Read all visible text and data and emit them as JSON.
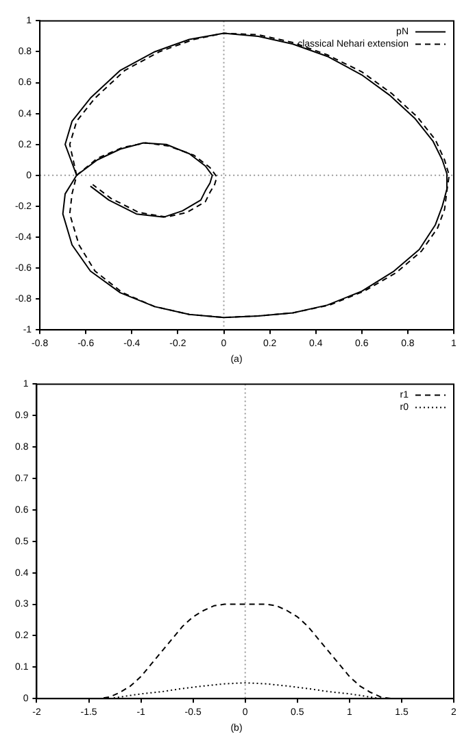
{
  "chart_data": [
    {
      "type": "line",
      "xlim": [
        -0.8,
        1
      ],
      "ylim": [
        -1,
        1
      ],
      "xticks": [
        -0.8,
        -0.6,
        -0.4,
        -0.2,
        0,
        0.2,
        0.4,
        0.6,
        0.8,
        1
      ],
      "yticks": [
        -1,
        -0.8,
        -0.6,
        -0.4,
        -0.2,
        0,
        0.2,
        0.4,
        0.6,
        0.8,
        1
      ],
      "grid": false,
      "legend": "top right",
      "marker": "none",
      "annotations": [
        "(a)"
      ],
      "ref_lines": [
        {
          "axis": "x",
          "value": 0,
          "line_style": "dotted",
          "color": "#999999"
        },
        {
          "axis": "y",
          "value": 0,
          "line_style": "dotted",
          "color": "#999999"
        }
      ],
      "series": [
        {
          "name": "pN",
          "color": "#000000",
          "line_style": "solid",
          "x": [
            -0.64,
            -0.69,
            -0.66,
            -0.58,
            -0.45,
            -0.3,
            -0.15,
            0,
            0.15,
            0.3,
            0.45,
            0.6,
            0.72,
            0.83,
            0.91,
            0.95,
            0.97,
            0.97,
            0.95,
            0.92,
            0.85,
            0.74,
            0.6,
            0.45,
            0.3,
            0.15,
            0,
            -0.15,
            -0.3,
            -0.45,
            -0.58,
            -0.66,
            -0.7,
            -0.69,
            -0.64,
            -0.55,
            -0.45,
            -0.35,
            -0.25,
            -0.15,
            -0.08,
            -0.06,
            -0.05,
            -0.06,
            -0.08,
            -0.1,
            -0.18,
            -0.26,
            -0.38,
            -0.5,
            -0.58
          ],
          "values": [
            0,
            0.2,
            0.35,
            0.5,
            0.68,
            0.8,
            0.88,
            0.92,
            0.9,
            0.85,
            0.77,
            0.65,
            0.52,
            0.37,
            0.22,
            0.1,
            0.01,
            -0.09,
            -0.2,
            -0.32,
            -0.48,
            -0.62,
            -0.75,
            -0.84,
            -0.89,
            -0.91,
            -0.92,
            -0.9,
            -0.85,
            -0.76,
            -0.62,
            -0.45,
            -0.25,
            -0.12,
            0,
            0.1,
            0.17,
            0.21,
            0.2,
            0.14,
            0.06,
            0.02,
            0,
            -0.05,
            -0.1,
            -0.16,
            -0.23,
            -0.27,
            -0.25,
            -0.16,
            -0.07
          ]
        },
        {
          "name": "classical Nehari extension",
          "color": "#000000",
          "line_style": "dashed",
          "x": [
            -0.64,
            -0.67,
            -0.64,
            -0.56,
            -0.43,
            -0.28,
            -0.13,
            0,
            0.15,
            0.3,
            0.45,
            0.6,
            0.73,
            0.84,
            0.92,
            0.96,
            0.98,
            0.97,
            0.96,
            0.93,
            0.86,
            0.75,
            0.61,
            0.46,
            0.3,
            0.15,
            0,
            -0.15,
            -0.3,
            -0.44,
            -0.56,
            -0.63,
            -0.67,
            -0.66,
            -0.64,
            -0.55,
            -0.44,
            -0.34,
            -0.24,
            -0.13,
            -0.06,
            -0.04,
            -0.03,
            -0.04,
            -0.06,
            -0.08,
            -0.16,
            -0.25,
            -0.37,
            -0.49,
            -0.57
          ],
          "values": [
            0,
            0.2,
            0.35,
            0.5,
            0.68,
            0.8,
            0.88,
            0.92,
            0.91,
            0.86,
            0.78,
            0.67,
            0.53,
            0.38,
            0.23,
            0.1,
            0,
            -0.1,
            -0.22,
            -0.34,
            -0.49,
            -0.63,
            -0.75,
            -0.84,
            -0.89,
            -0.91,
            -0.92,
            -0.9,
            -0.85,
            -0.76,
            -0.62,
            -0.45,
            -0.25,
            -0.12,
            0,
            0.11,
            0.18,
            0.21,
            0.19,
            0.13,
            0.05,
            0.01,
            -0.01,
            -0.06,
            -0.11,
            -0.17,
            -0.24,
            -0.27,
            -0.24,
            -0.15,
            -0.06
          ]
        }
      ]
    },
    {
      "type": "line",
      "xlim": [
        -2,
        2
      ],
      "ylim": [
        0,
        1
      ],
      "xticks": [
        -2,
        -1.5,
        -1,
        -0.5,
        0,
        0.5,
        1,
        1.5,
        2
      ],
      "yticks": [
        0,
        0.1,
        0.2,
        0.3,
        0.4,
        0.5,
        0.6,
        0.7,
        0.8,
        0.9,
        1
      ],
      "grid": false,
      "legend": "top right",
      "marker": "none",
      "annotations": [
        "(b)"
      ],
      "ref_lines": [
        {
          "axis": "x",
          "value": 0,
          "line_style": "dotted",
          "color": "#999999"
        }
      ],
      "series": [
        {
          "name": "r1",
          "color": "#000000",
          "line_style": "dashed",
          "x": [
            -1.45,
            -1.4,
            -1.3,
            -1.2,
            -1.1,
            -1,
            -0.9,
            -0.8,
            -0.7,
            -0.6,
            -0.5,
            -0.4,
            -0.3,
            -0.2,
            -0.1,
            0,
            0.1,
            0.2,
            0.3,
            0.4,
            0.5,
            0.6,
            0.7,
            0.8,
            0.9,
            1,
            1.1,
            1.2,
            1.3,
            1.4,
            1.45
          ],
          "values": [
            0,
            0,
            0.005,
            0.02,
            0.04,
            0.07,
            0.11,
            0.15,
            0.19,
            0.23,
            0.26,
            0.28,
            0.295,
            0.3,
            0.3,
            0.3,
            0.3,
            0.3,
            0.295,
            0.28,
            0.26,
            0.23,
            0.19,
            0.15,
            0.11,
            0.07,
            0.04,
            0.02,
            0.005,
            0,
            0
          ]
        },
        {
          "name": "r0",
          "color": "#000000",
          "line_style": "dotted",
          "x": [
            -1.3,
            -1.1,
            -1,
            -0.8,
            -0.6,
            -0.4,
            -0.2,
            0,
            0.2,
            0.4,
            0.6,
            0.8,
            1,
            1.1,
            1.3
          ],
          "values": [
            0,
            0.01,
            0.015,
            0.022,
            0.032,
            0.04,
            0.047,
            0.05,
            0.047,
            0.04,
            0.032,
            0.022,
            0.015,
            0.01,
            0
          ]
        }
      ]
    }
  ]
}
